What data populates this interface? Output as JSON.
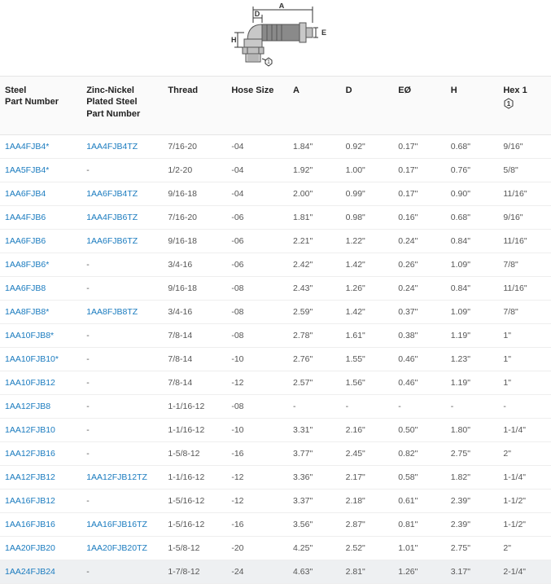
{
  "diagram": {
    "labels": {
      "A": "A",
      "D": "D",
      "E": "E",
      "H": "H",
      "hex": "1"
    },
    "stroke": "#555555",
    "fill_dark": "#8a8a8a",
    "fill_light": "#d0d0d0",
    "text_color": "#333333"
  },
  "table": {
    "link_color": "#1a7bbf",
    "header_bg": "#fafafa",
    "border_color": "#e5e5e5",
    "row_border": "#eeeeee",
    "highlight_bg": "#eef0f2",
    "columns": [
      {
        "key": "steel",
        "label": "Steel\nPart Number"
      },
      {
        "key": "zn",
        "label": "Zinc-Nickel\nPlated Steel\nPart Number"
      },
      {
        "key": "thread",
        "label": "Thread"
      },
      {
        "key": "hose",
        "label": "Hose Size"
      },
      {
        "key": "a",
        "label": "A"
      },
      {
        "key": "d",
        "label": "D"
      },
      {
        "key": "eo",
        "label": "EØ"
      },
      {
        "key": "h",
        "label": "H"
      },
      {
        "key": "hex",
        "label": "Hex 1"
      }
    ],
    "rows": [
      {
        "steel": "1AA4FJB4*",
        "zn": "1AA4FJB4TZ",
        "thread": "7/16-20",
        "hose": "-04",
        "a": "1.84\"",
        "d": "0.92\"",
        "eo": "0.17\"",
        "h": "0.68\"",
        "hex": "9/16\""
      },
      {
        "steel": "1AA5FJB4*",
        "zn": "-",
        "thread": "1/2-20",
        "hose": "-04",
        "a": "1.92\"",
        "d": "1.00\"",
        "eo": "0.17\"",
        "h": "0.76\"",
        "hex": "5/8\""
      },
      {
        "steel": "1AA6FJB4",
        "zn": "1AA6FJB4TZ",
        "thread": "9/16-18",
        "hose": "-04",
        "a": "2.00\"",
        "d": "0.99\"",
        "eo": "0.17\"",
        "h": "0.90\"",
        "hex": "11/16\""
      },
      {
        "steel": "1AA4FJB6",
        "zn": "1AA4FJB6TZ",
        "thread": "7/16-20",
        "hose": "-06",
        "a": "1.81\"",
        "d": "0.98\"",
        "eo": "0.16\"",
        "h": "0.68\"",
        "hex": "9/16\""
      },
      {
        "steel": "1AA6FJB6",
        "zn": "1AA6FJB6TZ",
        "thread": "9/16-18",
        "hose": "-06",
        "a": "2.21\"",
        "d": "1.22\"",
        "eo": "0.24\"",
        "h": "0.84\"",
        "hex": "11/16\""
      },
      {
        "steel": "1AA8FJB6*",
        "zn": "-",
        "thread": "3/4-16",
        "hose": "-06",
        "a": "2.42\"",
        "d": "1.42\"",
        "eo": "0.26\"",
        "h": "1.09\"",
        "hex": "7/8\""
      },
      {
        "steel": "1AA6FJB8",
        "zn": "-",
        "thread": "9/16-18",
        "hose": "-08",
        "a": "2.43\"",
        "d": "1.26\"",
        "eo": "0.24\"",
        "h": "0.84\"",
        "hex": "11/16\""
      },
      {
        "steel": "1AA8FJB8*",
        "zn": "1AA8FJB8TZ",
        "thread": "3/4-16",
        "hose": "-08",
        "a": "2.59\"",
        "d": "1.42\"",
        "eo": "0.37\"",
        "h": "1.09\"",
        "hex": "7/8\""
      },
      {
        "steel": "1AA10FJB8*",
        "zn": "-",
        "thread": "7/8-14",
        "hose": "-08",
        "a": "2.78\"",
        "d": "1.61\"",
        "eo": "0.38\"",
        "h": "1.19\"",
        "hex": "1\""
      },
      {
        "steel": "1AA10FJB10*",
        "zn": "-",
        "thread": "7/8-14",
        "hose": "-10",
        "a": "2.76\"",
        "d": "1.55\"",
        "eo": "0.46\"",
        "h": "1.23\"",
        "hex": "1\""
      },
      {
        "steel": "1AA10FJB12",
        "zn": "-",
        "thread": "7/8-14",
        "hose": "-12",
        "a": "2.57\"",
        "d": "1.56\"",
        "eo": "0.46\"",
        "h": "1.19\"",
        "hex": "1\""
      },
      {
        "steel": "1AA12FJB8",
        "zn": "-",
        "thread": "1-1/16-12",
        "hose": "-08",
        "a": "-",
        "d": "-",
        "eo": "-",
        "h": "-",
        "hex": "-"
      },
      {
        "steel": "1AA12FJB10",
        "zn": "-",
        "thread": "1-1/16-12",
        "hose": "-10",
        "a": "3.31\"",
        "d": "2.16\"",
        "eo": "0.50\"",
        "h": "1.80\"",
        "hex": "1-1/4\""
      },
      {
        "steel": "1AA12FJB16",
        "zn": "-",
        "thread": "1-5/8-12",
        "hose": "-16",
        "a": "3.77\"",
        "d": "2.45\"",
        "eo": "0.82\"",
        "h": "2.75\"",
        "hex": "2\""
      },
      {
        "steel": "1AA12FJB12",
        "zn": "1AA12FJB12TZ",
        "thread": "1-1/16-12",
        "hose": "-12",
        "a": "3.36\"",
        "d": "2.17\"",
        "eo": "0.58\"",
        "h": "1.82\"",
        "hex": "1-1/4\""
      },
      {
        "steel": "1AA16FJB12",
        "zn": "-",
        "thread": "1-5/16-12",
        "hose": "-12",
        "a": "3.37\"",
        "d": "2.18\"",
        "eo": "0.61\"",
        "h": "2.39\"",
        "hex": "1-1/2\""
      },
      {
        "steel": "1AA16FJB16",
        "zn": "1AA16FJB16TZ",
        "thread": "1-5/16-12",
        "hose": "-16",
        "a": "3.56\"",
        "d": "2.87\"",
        "eo": "0.81\"",
        "h": "2.39\"",
        "hex": "1-1/2\""
      },
      {
        "steel": "1AA20FJB20",
        "zn": "1AA20FJB20TZ",
        "thread": "1-5/8-12",
        "hose": "-20",
        "a": "4.25\"",
        "d": "2.52\"",
        "eo": "1.01\"",
        "h": "2.75\"",
        "hex": "2\""
      },
      {
        "steel": "1AA24FJB24",
        "zn": "-",
        "thread": "1-7/8-12",
        "hose": "-24",
        "a": "4.63\"",
        "d": "2.81\"",
        "eo": "1.26\"",
        "h": "3.17\"",
        "hex": "2-1/4\""
      }
    ]
  }
}
